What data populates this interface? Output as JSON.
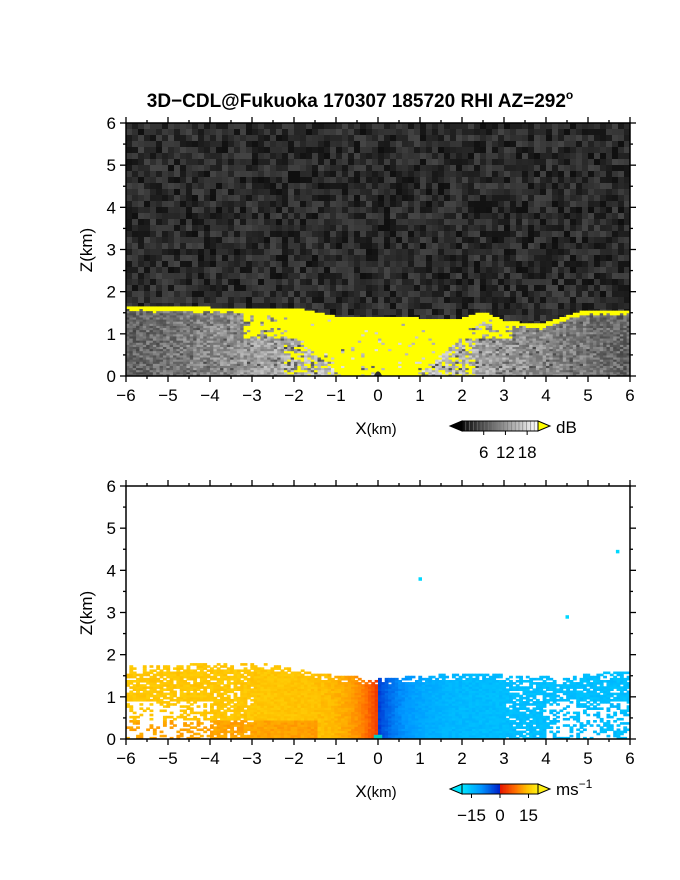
{
  "title": "3D−CDL@Fukuoka 170307 185720 RHI AZ=292",
  "title_degree": "o",
  "chart_data": [
    {
      "type": "heatmap",
      "name": "backscatter-intensity",
      "xlabel_main": "X",
      "xlabel_unit": "(km)",
      "ylabel": "Z(km)",
      "xlim": [
        -6,
        6
      ],
      "ylim": [
        0,
        6
      ],
      "x_ticks": [
        "−6",
        "−5",
        "−4",
        "−3",
        "−2",
        "−1",
        "0",
        "1",
        "2",
        "3",
        "4",
        "5",
        "6"
      ],
      "y_ticks": [
        "0",
        "1",
        "2",
        "3",
        "4",
        "5",
        "6"
      ],
      "data_top_height_km": [
        {
          "x": -6.0,
          "z": 1.65
        },
        {
          "x": -4.0,
          "z": 1.6
        },
        {
          "x": -2.0,
          "z": 1.6
        },
        {
          "x": -1.0,
          "z": 1.4
        },
        {
          "x": 0.0,
          "z": 1.38
        },
        {
          "x": 1.0,
          "z": 1.35
        },
        {
          "x": 2.0,
          "z": 1.35
        },
        {
          "x": 2.5,
          "z": 1.5
        },
        {
          "x": 3.0,
          "z": 1.3
        },
        {
          "x": 3.8,
          "z": 1.2
        },
        {
          "x": 5.0,
          "z": 1.55
        },
        {
          "x": 6.0,
          "z": 1.55
        }
      ],
      "colorbar": {
        "unit": "dB",
        "ticks": [
          "6",
          "12",
          "18"
        ],
        "range": [
          0,
          21
        ],
        "saturated_color": "#ffff00"
      },
      "colors": {
        "background_noise": "#222222",
        "saturated": "#ffff00"
      }
    },
    {
      "type": "heatmap",
      "name": "doppler-velocity",
      "xlabel_main": "X",
      "xlabel_unit": "(km)",
      "ylabel": "Z(km)",
      "xlim": [
        -6,
        6
      ],
      "ylim": [
        0,
        6
      ],
      "x_ticks": [
        "−6",
        "−5",
        "−4",
        "−3",
        "−2",
        "−1",
        "0",
        "1",
        "2",
        "3",
        "4",
        "5",
        "6"
      ],
      "y_ticks": [
        "0",
        "1",
        "2",
        "3",
        "4",
        "5",
        "6"
      ],
      "data_top_height_km": [
        {
          "x": -6.0,
          "z": 1.7
        },
        {
          "x": -3.0,
          "z": 1.8
        },
        {
          "x": -1.0,
          "z": 1.5
        },
        {
          "x": 0.0,
          "z": 1.4
        },
        {
          "x": 2.0,
          "z": 1.55
        },
        {
          "x": 4.0,
          "z": 1.45
        },
        {
          "x": 6.0,
          "z": 1.6
        }
      ],
      "isolated_points": [
        {
          "x": 1.0,
          "z": 3.8
        },
        {
          "x": 4.5,
          "z": 2.9
        },
        {
          "x": 5.7,
          "z": 4.45
        }
      ],
      "colorbar": {
        "unit_main": "ms",
        "unit_exp": "−1",
        "ticks": [
          "−15",
          "0",
          "15"
        ],
        "range": [
          -20,
          20
        ]
      },
      "colors": {
        "negative": "#00a0ff",
        "zero_neg": "#0030c0",
        "zero_pos": "#e82000",
        "positive": "#ffe000"
      }
    }
  ]
}
